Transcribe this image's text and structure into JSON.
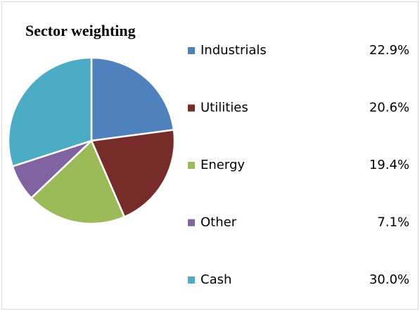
{
  "chart_data": {
    "type": "pie",
    "title": "Sector weighting",
    "categories": [
      "Industrials",
      "Utilities",
      "Energy",
      "Other",
      "Cash"
    ],
    "values": [
      22.9,
      20.6,
      19.4,
      7.1,
      30.0
    ],
    "value_labels": [
      "22.9%",
      "20.6%",
      "19.4%",
      "7.1%",
      "30.0%"
    ],
    "colors": [
      "#4f81bd",
      "#772c2a",
      "#9bbb59",
      "#8064a2",
      "#4bacc6"
    ],
    "legend": "right"
  }
}
